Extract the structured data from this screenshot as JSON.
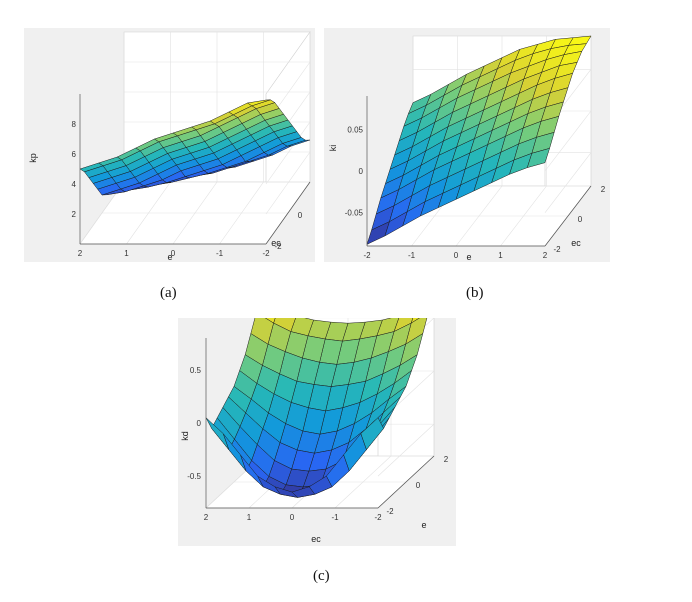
{
  "captions": {
    "a": "(a)",
    "b": "(b)",
    "c": "(c)"
  },
  "chart_data": [
    {
      "id": "a",
      "type": "surface",
      "xlabel": "e",
      "ylabel": "ec",
      "zlabel": "kp",
      "xlim": [
        -2,
        2
      ],
      "ylim": [
        -2,
        2
      ],
      "zlim": [
        0,
        10
      ],
      "xticks": [
        -2,
        -1,
        0,
        1,
        2
      ],
      "yticks": [
        -2,
        0,
        2
      ],
      "zticks": [
        2,
        4,
        6,
        8
      ],
      "xtick_labels": [
        "-2",
        "-1",
        "0",
        "1",
        "2"
      ],
      "ytick_labels": [
        "-2",
        "0",
        "2"
      ],
      "ztick_labels": [
        "2",
        "4",
        "6",
        "8"
      ],
      "grid": true,
      "x": [
        -2,
        -1.6,
        -1.2,
        -0.8,
        -0.4,
        0,
        0.4,
        0.8,
        1.2,
        1.6,
        2
      ],
      "y": [
        -2,
        -1.6,
        -1.2,
        -0.8,
        -0.4,
        0,
        0.4,
        0.8,
        1.2,
        1.6,
        2
      ],
      "z": [
        [
          9.6,
          9.4,
          8.8,
          8.2,
          7.8,
          7.4,
          7.0,
          6.4,
          5.8,
          5.4,
          5.0
        ],
        [
          9.2,
          8.8,
          8.2,
          7.6,
          7.2,
          6.8,
          6.4,
          5.8,
          5.2,
          4.8,
          4.4
        ],
        [
          8.6,
          8.2,
          7.6,
          7.0,
          6.4,
          6.0,
          5.6,
          5.0,
          4.4,
          4.0,
          3.6
        ],
        [
          7.8,
          7.4,
          6.8,
          6.2,
          5.6,
          5.2,
          4.8,
          4.2,
          3.6,
          3.2,
          2.8
        ],
        [
          7.0,
          6.6,
          6.0,
          5.4,
          4.8,
          4.4,
          4.0,
          3.4,
          2.8,
          2.4,
          2.0
        ],
        [
          6.2,
          5.8,
          5.2,
          4.6,
          4.0,
          3.6,
          3.2,
          2.6,
          2.0,
          1.6,
          1.2
        ],
        [
          5.4,
          5.0,
          4.4,
          3.8,
          3.2,
          2.8,
          2.4,
          1.8,
          1.4,
          1.0,
          0.8
        ],
        [
          4.6,
          4.2,
          3.6,
          3.0,
          2.4,
          2.0,
          1.6,
          1.2,
          0.9,
          0.7,
          0.6
        ],
        [
          3.8,
          3.4,
          2.8,
          2.2,
          1.8,
          1.4,
          1.1,
          0.8,
          0.6,
          0.5,
          0.4
        ],
        [
          3.2,
          2.8,
          2.2,
          1.8,
          1.4,
          1.0,
          0.8,
          0.6,
          0.4,
          0.3,
          0.2
        ],
        [
          2.8,
          2.4,
          1.8,
          1.4,
          1.0,
          0.8,
          0.6,
          0.4,
          0.3,
          0.2,
          0.1
        ]
      ]
    },
    {
      "id": "b",
      "type": "surface",
      "xlabel": "e",
      "ylabel": "ec",
      "zlabel": "ki",
      "xlim": [
        -2,
        2
      ],
      "ylim": [
        -2,
        2
      ],
      "zlim": [
        -0.09,
        0.09
      ],
      "xticks": [
        -2,
        -1,
        0,
        1,
        2
      ],
      "yticks": [
        -2,
        0,
        2
      ],
      "zticks": [
        -0.05,
        0,
        0.05
      ],
      "xtick_labels": [
        "-2",
        "-1",
        "0",
        "1",
        "2"
      ],
      "ytick_labels": [
        "-2",
        "0",
        "2"
      ],
      "ztick_labels": [
        "-0.05",
        "0",
        "0.05"
      ],
      "grid": true,
      "x": [
        -2,
        -1.6,
        -1.2,
        -0.8,
        -0.4,
        0,
        0.4,
        0.8,
        1.2,
        1.6,
        2
      ],
      "y": [
        -2,
        -1.6,
        -1.2,
        -0.8,
        -0.4,
        0,
        0.4,
        0.8,
        1.2,
        1.6,
        2
      ],
      "z": [
        [
          -0.088,
          -0.078,
          -0.066,
          -0.054,
          -0.044,
          -0.034,
          -0.024,
          -0.014,
          -0.004,
          0.004,
          0.01
        ],
        [
          -0.078,
          -0.068,
          -0.056,
          -0.044,
          -0.034,
          -0.024,
          -0.014,
          -0.004,
          0.006,
          0.014,
          0.02
        ],
        [
          -0.066,
          -0.056,
          -0.044,
          -0.032,
          -0.022,
          -0.012,
          -0.002,
          0.008,
          0.018,
          0.026,
          0.032
        ],
        [
          -0.054,
          -0.044,
          -0.032,
          -0.02,
          -0.01,
          0.0,
          0.01,
          0.02,
          0.03,
          0.038,
          0.044
        ],
        [
          -0.044,
          -0.034,
          -0.022,
          -0.01,
          0.0,
          0.01,
          0.02,
          0.03,
          0.04,
          0.048,
          0.054
        ],
        [
          -0.034,
          -0.024,
          -0.012,
          0.0,
          0.01,
          0.02,
          0.03,
          0.04,
          0.05,
          0.058,
          0.064
        ],
        [
          -0.024,
          -0.014,
          -0.002,
          0.01,
          0.02,
          0.03,
          0.04,
          0.05,
          0.06,
          0.068,
          0.074
        ],
        [
          -0.014,
          -0.004,
          0.008,
          0.02,
          0.03,
          0.04,
          0.05,
          0.06,
          0.068,
          0.076,
          0.08
        ],
        [
          -0.004,
          0.006,
          0.018,
          0.03,
          0.04,
          0.05,
          0.06,
          0.068,
          0.076,
          0.082,
          0.086
        ],
        [
          0.004,
          0.014,
          0.026,
          0.038,
          0.048,
          0.058,
          0.068,
          0.076,
          0.082,
          0.086,
          0.088
        ],
        [
          0.01,
          0.02,
          0.032,
          0.044,
          0.054,
          0.064,
          0.074,
          0.08,
          0.086,
          0.088,
          0.09
        ]
      ]
    },
    {
      "id": "c",
      "type": "surface",
      "xlabel": "ec",
      "ylabel": "e",
      "zlabel": "kd",
      "xlim": [
        -2,
        2
      ],
      "ylim": [
        -2,
        2
      ],
      "zlim": [
        -0.8,
        0.8
      ],
      "xticks": [
        -2,
        -1,
        0,
        1,
        2
      ],
      "yticks": [
        -2,
        0,
        2
      ],
      "zticks": [
        -0.5,
        0,
        0.5
      ],
      "xtick_labels": [
        "-2",
        "-1",
        "0",
        "1",
        "2"
      ],
      "ytick_labels": [
        "-2",
        "0",
        "2"
      ],
      "ztick_labels": [
        "-0.5",
        "0",
        "0.5"
      ],
      "grid": true,
      "x": [
        -2,
        -1.6,
        -1.2,
        -0.8,
        -0.4,
        0,
        0.4,
        0.8,
        1.2,
        1.6,
        2
      ],
      "y": [
        -2,
        -1.6,
        -1.2,
        -0.8,
        -0.4,
        0,
        0.4,
        0.8,
        1.2,
        1.6,
        2
      ],
      "z": [
        [
          0.05,
          -0.1,
          -0.3,
          -0.5,
          -0.6,
          -0.65,
          -0.6,
          -0.5,
          -0.3,
          -0.1,
          0.05
        ],
        [
          -0.1,
          -0.3,
          -0.5,
          -0.65,
          -0.72,
          -0.75,
          -0.72,
          -0.65,
          -0.5,
          -0.3,
          -0.1
        ],
        [
          -0.05,
          -0.25,
          -0.45,
          -0.6,
          -0.68,
          -0.7,
          -0.68,
          -0.6,
          -0.45,
          -0.25,
          -0.05
        ],
        [
          0.0,
          -0.18,
          -0.35,
          -0.5,
          -0.58,
          -0.6,
          -0.58,
          -0.5,
          -0.35,
          -0.18,
          0.0
        ],
        [
          0.05,
          -0.1,
          -0.25,
          -0.38,
          -0.45,
          -0.48,
          -0.45,
          -0.38,
          -0.25,
          -0.1,
          0.05
        ],
        [
          0.1,
          -0.02,
          -0.15,
          -0.25,
          -0.32,
          -0.35,
          -0.32,
          -0.25,
          -0.15,
          -0.02,
          0.1
        ],
        [
          0.2,
          0.08,
          -0.02,
          -0.1,
          -0.15,
          -0.18,
          -0.15,
          -0.1,
          -0.02,
          0.08,
          0.2
        ],
        [
          0.3,
          0.2,
          0.12,
          0.05,
          0.02,
          0.0,
          0.02,
          0.05,
          0.12,
          0.2,
          0.3
        ],
        [
          0.45,
          0.35,
          0.28,
          0.22,
          0.18,
          0.16,
          0.18,
          0.22,
          0.28,
          0.35,
          0.45
        ],
        [
          0.6,
          0.5,
          0.42,
          0.38,
          0.35,
          0.33,
          0.35,
          0.38,
          0.42,
          0.5,
          0.6
        ],
        [
          0.8,
          0.62,
          0.52,
          0.48,
          0.46,
          0.45,
          0.46,
          0.48,
          0.52,
          0.62,
          0.75
        ]
      ]
    }
  ]
}
